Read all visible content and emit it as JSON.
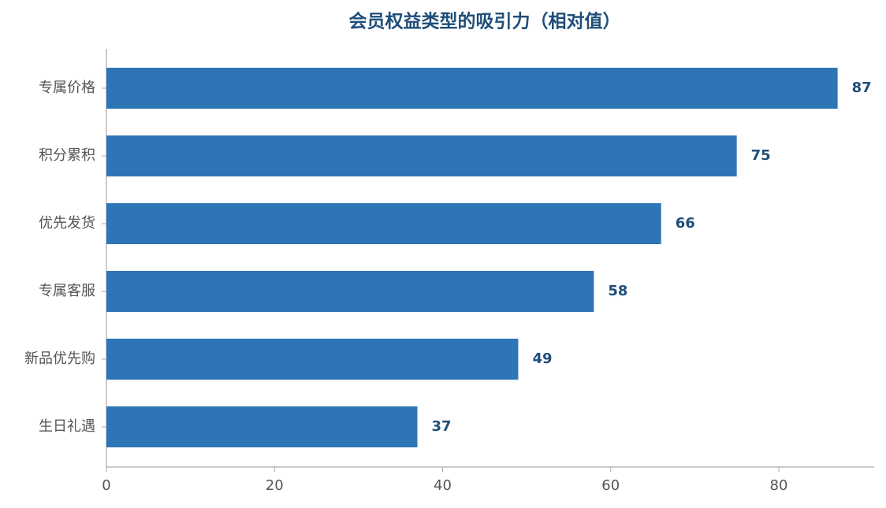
{
  "chart_data": {
    "type": "bar",
    "orientation": "horizontal",
    "title": "会员权益类型的吸引力（相对值）",
    "categories": [
      "专属价格",
      "积分累积",
      "优先发货",
      "专属客服",
      "新品优先购",
      "生日礼遇"
    ],
    "values": [
      87,
      75,
      66,
      58,
      49,
      37
    ],
    "color": "#2e75b6",
    "label_color": "#1f4e79",
    "xlim": [
      0,
      91.35
    ],
    "xticks": [
      0,
      20,
      40,
      60,
      80
    ],
    "grid": false
  }
}
